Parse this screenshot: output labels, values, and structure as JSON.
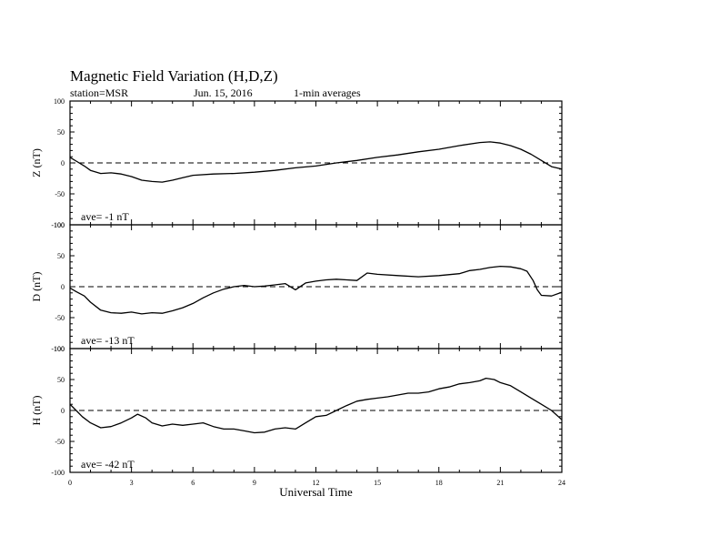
{
  "header": {
    "title": "Magnetic Field Variation (H,D,Z)",
    "station": "station=MSR",
    "date": "Jun. 15, 2016",
    "averaging": "1-min averages"
  },
  "chart_data": [
    {
      "type": "line",
      "ylabel": "Z (nT)",
      "ylim": [
        -100,
        100
      ],
      "yticks": [
        -100,
        -50,
        0,
        50,
        100
      ],
      "xlim": [
        0,
        24
      ],
      "zero_line": "dashed",
      "annotation": "ave= -1    nT",
      "series": [
        {
          "x": [
            0,
            0.3,
            0.7,
            1,
            1.5,
            2,
            2.5,
            3,
            3.5,
            4,
            4.5,
            5,
            5.5,
            6,
            7,
            8,
            9,
            10,
            11,
            12,
            13,
            14,
            15,
            16,
            17,
            18,
            19,
            20,
            20.5,
            21,
            21.5,
            22,
            22.5,
            23,
            23.5,
            24
          ],
          "y": [
            9,
            3,
            -5,
            -12,
            -17,
            -16,
            -18,
            -22,
            -28,
            -30,
            -31,
            -28,
            -24,
            -20,
            -18,
            -17,
            -15,
            -12,
            -8,
            -5,
            0,
            4,
            9,
            13,
            18,
            22,
            28,
            33,
            34,
            32,
            28,
            22,
            14,
            4,
            -6,
            -10
          ]
        }
      ]
    },
    {
      "type": "line",
      "ylabel": "D (nT)",
      "ylim": [
        -100,
        100
      ],
      "yticks": [
        -100,
        -50,
        0,
        50,
        100
      ],
      "xlim": [
        0,
        24
      ],
      "zero_line": "dashed",
      "annotation": "ave= -13   nT",
      "series": [
        {
          "x": [
            0,
            0.3,
            0.7,
            1,
            1.5,
            2,
            2.5,
            3,
            3.5,
            4,
            4.5,
            5,
            5.5,
            6,
            6.5,
            7,
            7.5,
            8,
            8.5,
            9,
            9.5,
            10,
            10.5,
            11,
            11.5,
            12,
            12.5,
            13,
            13.5,
            14,
            14.5,
            15,
            16,
            17,
            18,
            19,
            19.5,
            20,
            20.5,
            21,
            21.5,
            22,
            22.3,
            22.6,
            22.8,
            23,
            23.5,
            24
          ],
          "y": [
            -2,
            -8,
            -15,
            -25,
            -38,
            -42,
            -43,
            -41,
            -44,
            -42,
            -43,
            -39,
            -34,
            -27,
            -18,
            -10,
            -4,
            0,
            2,
            0,
            1,
            3,
            5,
            -5,
            6,
            9,
            11,
            12,
            11,
            10,
            22,
            20,
            18,
            16,
            18,
            21,
            26,
            28,
            31,
            33,
            32,
            29,
            25,
            10,
            -5,
            -14,
            -15,
            -9
          ]
        }
      ]
    },
    {
      "type": "line",
      "ylabel": "H (nT)",
      "ylim": [
        -100,
        100
      ],
      "yticks": [
        -100,
        -50,
        0,
        50,
        100
      ],
      "xlim": [
        0,
        24
      ],
      "xticks": [
        0,
        3,
        6,
        9,
        12,
        15,
        18,
        21,
        24
      ],
      "xlabel": "Universal Time",
      "zero_line": "dashed",
      "annotation": "ave= -42   nT",
      "series": [
        {
          "x": [
            0,
            0.3,
            0.6,
            1,
            1.5,
            2,
            2.5,
            3,
            3.3,
            3.7,
            4,
            4.5,
            5,
            5.5,
            6,
            6.5,
            7,
            7.5,
            8,
            8.5,
            9,
            9.5,
            10,
            10.5,
            11,
            11.5,
            12,
            12.5,
            13,
            13.5,
            14,
            14.5,
            15,
            15.5,
            16,
            16.5,
            17,
            17.5,
            18,
            18.5,
            19,
            19.5,
            20,
            20.3,
            20.7,
            21,
            21.5,
            22,
            22.5,
            23,
            23.5,
            24
          ],
          "y": [
            10,
            0,
            -10,
            -20,
            -28,
            -26,
            -20,
            -12,
            -6,
            -12,
            -20,
            -25,
            -22,
            -24,
            -22,
            -20,
            -26,
            -30,
            -30,
            -33,
            -36,
            -35,
            -30,
            -28,
            -30,
            -20,
            -10,
            -8,
            0,
            8,
            15,
            18,
            20,
            22,
            25,
            28,
            28,
            30,
            35,
            38,
            43,
            45,
            48,
            52,
            50,
            45,
            40,
            30,
            20,
            10,
            0,
            -15
          ]
        }
      ]
    }
  ]
}
